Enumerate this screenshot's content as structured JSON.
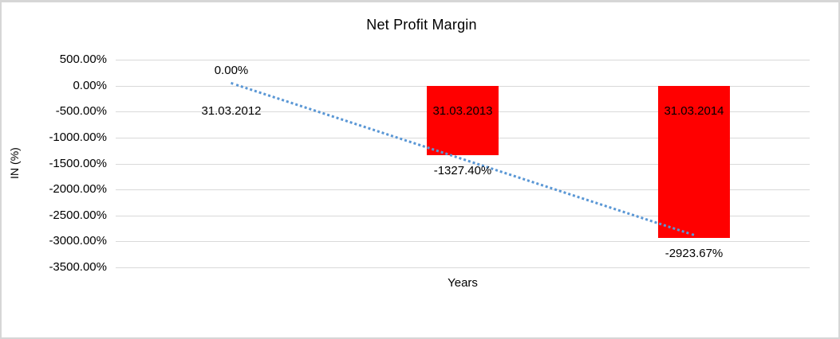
{
  "window": {
    "background_color": "#ffffff",
    "border_color": "#d6d6d6"
  },
  "chart_data": {
    "type": "bar",
    "title": "Net Profit Margin",
    "xlabel": "Years",
    "ylabel": "IN (%)",
    "categories": [
      "31.03.2012",
      "31.03.2013",
      "31.03.2014"
    ],
    "series": [
      {
        "name": "Net Profit Margin",
        "values": [
          0.0,
          -1327.4,
          -2923.67
        ]
      }
    ],
    "data_labels": [
      "0.00%",
      "-1327.40%",
      "-2923.67%"
    ],
    "ylim": [
      -3500,
      500
    ],
    "ytick_step": 500,
    "yticks": [
      "500.00%",
      "0.00%",
      "-500.00%",
      "-1000.00%",
      "-1500.00%",
      "-2000.00%",
      "-2500.00%",
      "-3000.00%",
      "-3500.00%"
    ],
    "grid": true,
    "legend_position": "none",
    "bar_color": "#ff0000",
    "gridline_color": "#d9d9d9",
    "trendline": {
      "type": "linear",
      "line_style": "dotted",
      "color": "#5a97d5"
    }
  }
}
